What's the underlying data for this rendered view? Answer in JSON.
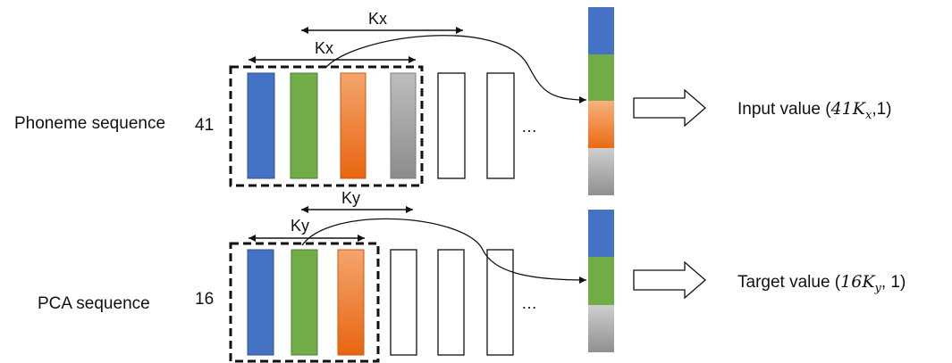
{
  "top": {
    "row_label": "Phoneme sequence",
    "count": "41",
    "window_label_inner": "Kx",
    "window_label_outer": "Kx",
    "ellipsis": "…",
    "output_label_prefix": "Input value (",
    "output_coef": "41",
    "output_var": "K",
    "output_sub": "x",
    "output_suffix": ",1)"
  },
  "bottom": {
    "row_label": "PCA sequence",
    "count": "16",
    "window_label_inner": "Ky",
    "window_label_outer": "Ky",
    "ellipsis": "…",
    "output_label_prefix": "Target value (",
    "output_coef": "16",
    "output_var": "K",
    "output_sub": "y",
    "output_suffix": ", 1)"
  },
  "colors": {
    "blue": "#4472c4",
    "green": "#70ad47",
    "orange": "#ed7d31",
    "gray": "#a6a6a6"
  }
}
